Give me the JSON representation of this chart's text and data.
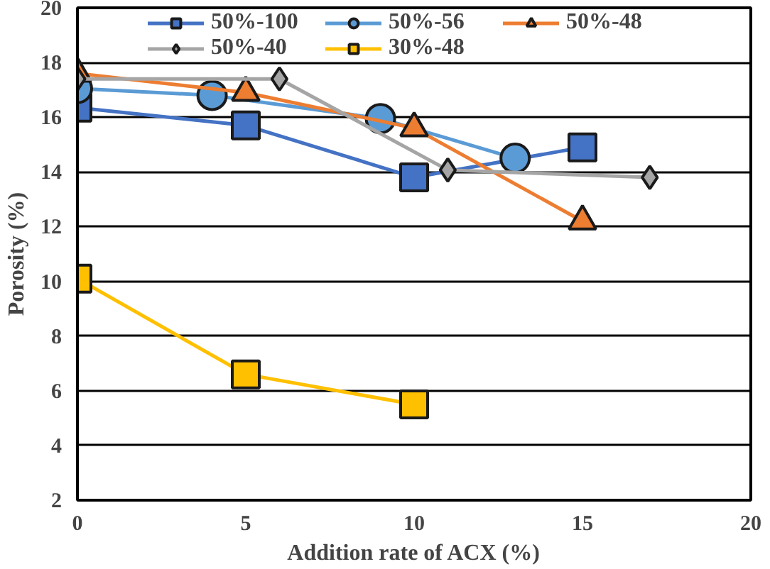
{
  "chart_data": {
    "type": "line",
    "xlabel": "Addition rate of ACX (%)",
    "ylabel": "Porosity (%)",
    "xlim": [
      0,
      20
    ],
    "xticks": [
      0,
      5,
      10,
      15,
      20
    ],
    "ylim": [
      2,
      20
    ],
    "yticks": [
      2,
      4,
      6,
      8,
      10,
      12,
      14,
      16,
      18,
      20
    ],
    "grid": "y",
    "legend": "top",
    "line_style": "solid",
    "series": [
      {
        "name": "50%-100",
        "color": "#4472c4",
        "marker": "square",
        "x": [
          0,
          5,
          10,
          15
        ],
        "values": [
          16.35,
          15.7,
          13.8,
          14.9
        ]
      },
      {
        "name": "50%-56",
        "color": "#5b9bd5",
        "marker": "circle",
        "x": [
          0,
          4,
          9,
          13
        ],
        "values": [
          17.05,
          16.8,
          15.95,
          14.5
        ]
      },
      {
        "name": "50%-48",
        "color": "#ed7d31",
        "marker": "triangle",
        "x": [
          0,
          5,
          10,
          15
        ],
        "values": [
          17.6,
          16.9,
          15.6,
          12.2
        ]
      },
      {
        "name": "50%-40",
        "color": "#a5a5a5",
        "marker": "diamond",
        "x": [
          0,
          6,
          11,
          17
        ],
        "values": [
          17.4,
          17.4,
          14.07,
          13.8
        ]
      },
      {
        "name": "30%-48",
        "color": "#ffc000",
        "marker": "square",
        "x": [
          0,
          5,
          10
        ],
        "values": [
          10.1,
          6.6,
          5.5
        ]
      }
    ]
  }
}
